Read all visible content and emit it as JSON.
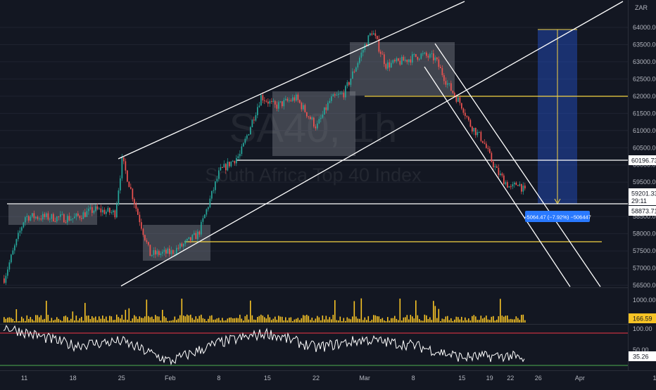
{
  "header": {
    "currency": "ZAR"
  },
  "watermark": {
    "symbol": "SA40, 1h",
    "name": "South Africa Top 40 Index"
  },
  "colors": {
    "background": "#131722",
    "up": "#26a69a",
    "down": "#ef5350",
    "volume": "#f7c325",
    "trendline": "#ffffff",
    "support": "#f5d442",
    "box": "#9598a1",
    "projection": "#2962ff",
    "rsi": "#ffffff",
    "rsi_upper": "#f23645",
    "rsi_lower": "#4caf50",
    "price_label_bg": "#ffffff",
    "measure_bg": "#2979ff"
  },
  "price_axis": {
    "ticks": [
      56500,
      57000,
      57500,
      58000,
      58500,
      59000,
      59500,
      60000,
      60500,
      61000,
      61500,
      62000,
      62500,
      63000,
      63500,
      64000
    ]
  },
  "price_labels": {
    "level_a": "60196.73",
    "current": "59201.33",
    "countdown": "29:11",
    "level_b": "58873.71"
  },
  "measure_tool": {
    "label": "−5064.47 (−7.92%) −506447"
  },
  "volume_axis": {
    "ticks": [
      "1000.00"
    ],
    "current": "166.59"
  },
  "rsi_axis": {
    "ticks": [
      "100.00",
      "50.00"
    ],
    "current": "35.26"
  },
  "time_axis": {
    "labels": [
      "11",
      "18",
      "25",
      "Feb",
      "8",
      "15",
      "22",
      "Mar",
      "8",
      "15",
      "19",
      "22",
      "26",
      "Apr",
      "12"
    ]
  },
  "chart_data": [
    {
      "type": "line",
      "name": "SA40 1h price (approximate)",
      "x": [
        "Jan 8",
        "Jan 11",
        "Jan 18",
        "Jan 21",
        "Jan 24",
        "Jan 25",
        "Jan 27",
        "Jan 29",
        "Feb 1",
        "Feb 3",
        "Feb 5",
        "Feb 8",
        "Feb 11",
        "Feb 14",
        "Feb 16",
        "Feb 19",
        "Feb 22",
        "Feb 24",
        "Feb 26",
        "Mar 1",
        "Mar 2",
        "Mar 4",
        "Mar 6",
        "Mar 9",
        "Mar 11",
        "Mar 13",
        "Mar 15",
        "Mar 16",
        "Mar 18",
        "Mar 19",
        "Mar 20",
        "Mar 22",
        "Mar 23",
        "Mar 24"
      ],
      "y": [
        56700,
        58500,
        58450,
        58700,
        58600,
        60150,
        58750,
        57400,
        57450,
        57700,
        58000,
        59800,
        60300,
        62000,
        61700,
        61950,
        61100,
        61900,
        62100,
        63500,
        63900,
        62900,
        63000,
        63200,
        63100,
        62300,
        61700,
        61200,
        60700,
        60200,
        59800,
        59300,
        59500,
        59201.33
      ]
    },
    {
      "type": "bar",
      "name": "Volume",
      "ylim": [
        0,
        1300
      ],
      "annotations": {
        "current": 166.59
      }
    },
    {
      "type": "line",
      "name": "RSI",
      "ylim": [
        0,
        100
      ],
      "guides": [
        30,
        70
      ],
      "x": [
        "Jan 8",
        "Jan 18",
        "Jan 25",
        "Feb 1",
        "Feb 8",
        "Feb 15",
        "Feb 22",
        "Mar 1",
        "Mar 8",
        "Mar 15",
        "Mar 22",
        "Mar 24"
      ],
      "y": [
        78,
        55,
        60,
        35,
        58,
        70,
        52,
        62,
        55,
        40,
        42,
        35.26
      ]
    }
  ]
}
